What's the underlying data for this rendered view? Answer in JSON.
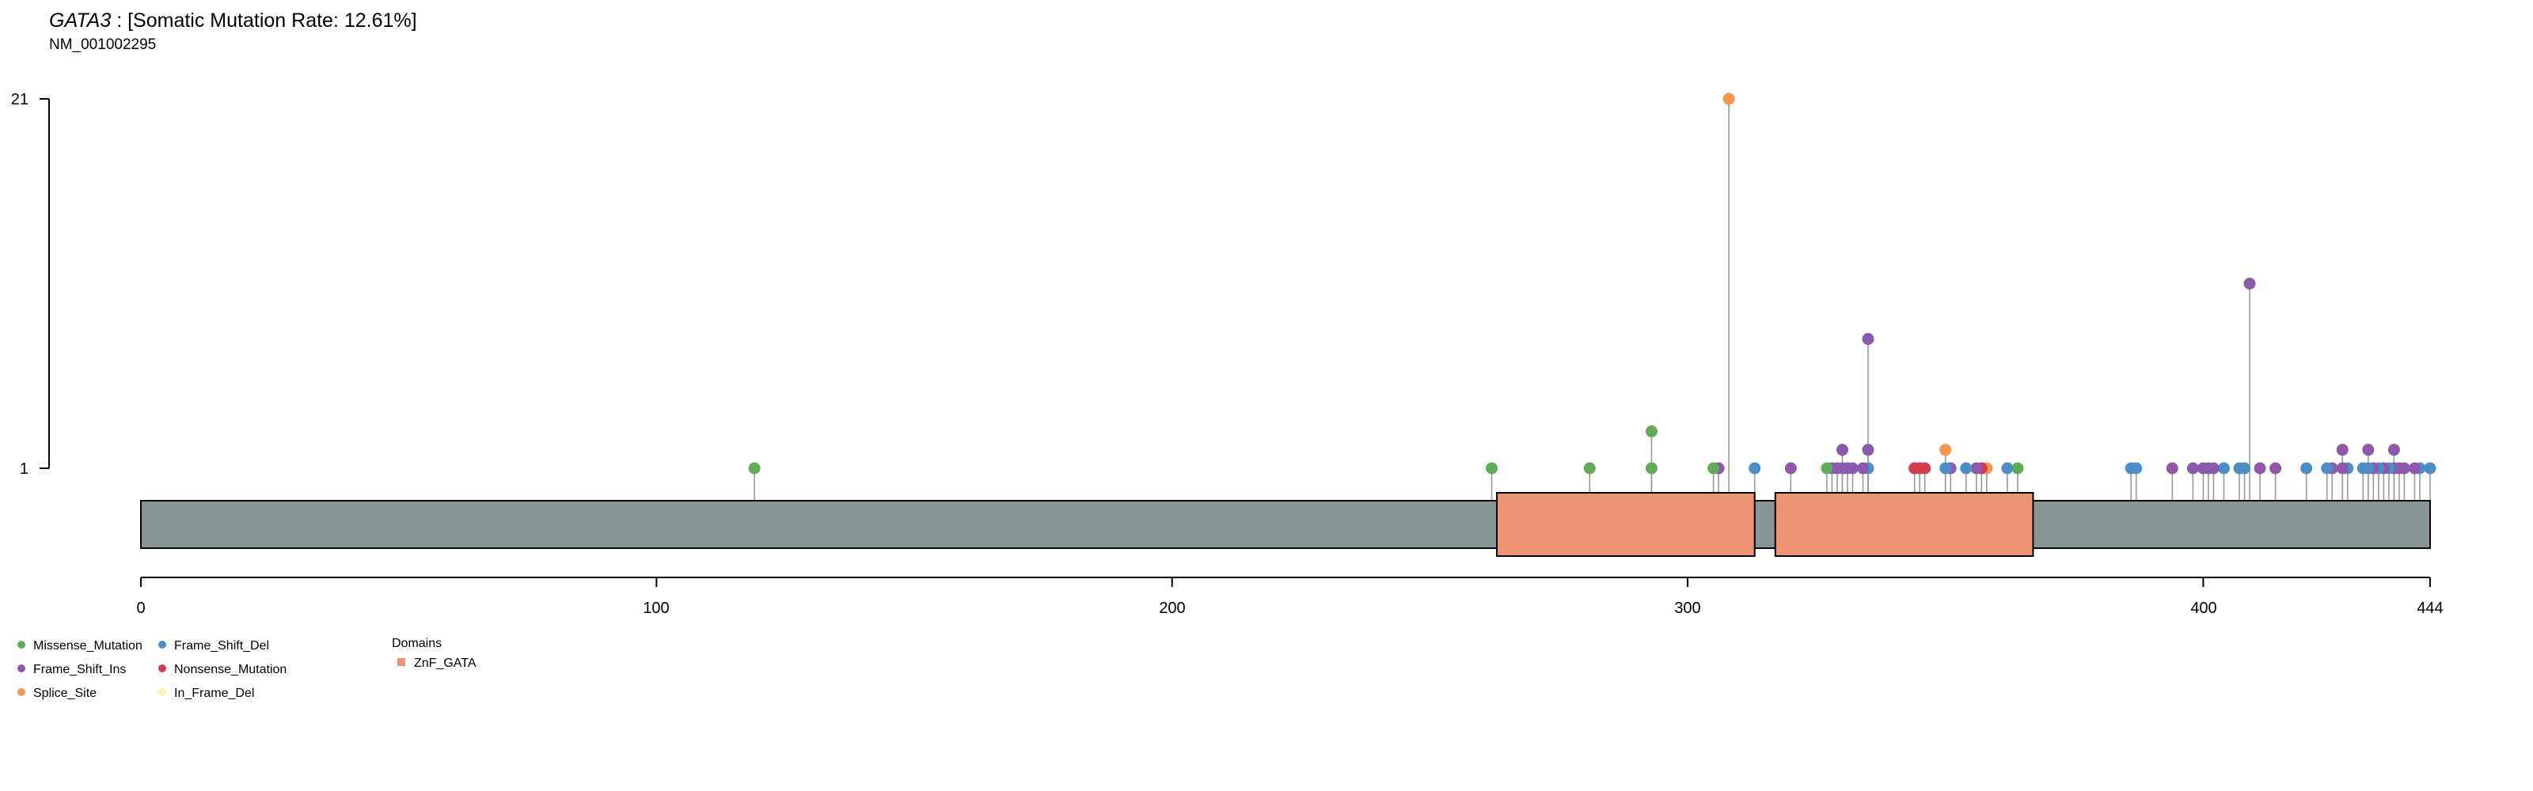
{
  "header": {
    "gene": "GATA3",
    "rate_text": " : [Somatic Mutation Rate: 12.61%]",
    "transcript": "NM_001002295"
  },
  "colors": {
    "Missense_Mutation": "#5fae57",
    "Frame_Shift_Del": "#4a8fc9",
    "Frame_Shift_Ins": "#8b5aad",
    "Nonsense_Mutation": "#d73a4f",
    "Splice_Site": "#f7954b",
    "In_Frame_Del": "#fff5a8",
    "Missense_dark": "#2f7a39",
    "Frame_Shift_Ins_dark": "#5a3387",
    "Frame_Shift_Del_dark": "#1f4e9a",
    "protein": "#879594",
    "domain": "#ef9473",
    "stem": "#9a9a9a"
  },
  "chart_data": {
    "type": "lollipop",
    "protein_length": 444,
    "x_ticks": [
      "0",
      "100",
      "200",
      "300",
      "400",
      "444"
    ],
    "y_ticks": [
      "1",
      "21"
    ],
    "ylim": [
      1,
      21
    ],
    "domains": [
      {
        "name": "ZnF_GATA",
        "start": 263,
        "end": 313
      },
      {
        "name": "ZnF_GATA",
        "start": 317,
        "end": 367
      }
    ],
    "mutations": [
      {
        "pos": 119,
        "count": 1,
        "type": "Missense_Mutation"
      },
      {
        "pos": 262,
        "count": 1,
        "type": "Missense_Mutation"
      },
      {
        "pos": 281,
        "count": 1,
        "type": "Missense_Mutation"
      },
      {
        "pos": 293,
        "count": 1,
        "type": "Missense_Mutation"
      },
      {
        "pos": 293,
        "count": 3,
        "type": "Missense_Mutation"
      },
      {
        "pos": 305,
        "count": 1,
        "type": "Missense_Mutation"
      },
      {
        "pos": 306,
        "count": 1,
        "type": "Frame_Shift_Ins"
      },
      {
        "pos": 308,
        "count": 21,
        "type": "Splice_Site"
      },
      {
        "pos": 313,
        "count": 1,
        "type": "Frame_Shift_Del"
      },
      {
        "pos": 320,
        "count": 1,
        "type": "Frame_Shift_Ins"
      },
      {
        "pos": 327,
        "count": 1,
        "type": "Missense_Mutation"
      },
      {
        "pos": 328,
        "count": 1,
        "type": "Frame_Shift_Ins"
      },
      {
        "pos": 329,
        "count": 1,
        "type": "Frame_Shift_Ins"
      },
      {
        "pos": 330,
        "count": 1,
        "type": "Frame_Shift_Ins"
      },
      {
        "pos": 330,
        "count": 2,
        "type": "Frame_Shift_Ins"
      },
      {
        "pos": 331,
        "count": 1,
        "type": "Frame_Shift_Ins"
      },
      {
        "pos": 332,
        "count": 1,
        "type": "Frame_Shift_Ins"
      },
      {
        "pos": 334,
        "count": 1,
        "type": "Frame_Shift_Ins"
      },
      {
        "pos": 335,
        "count": 1,
        "type": "Frame_Shift_Del"
      },
      {
        "pos": 335,
        "count": 2,
        "type": "Frame_Shift_Ins"
      },
      {
        "pos": 335,
        "count": 8,
        "type": "Frame_Shift_Ins"
      },
      {
        "pos": 344,
        "count": 1,
        "type": "Nonsense_Mutation"
      },
      {
        "pos": 345,
        "count": 1,
        "type": "Nonsense_Mutation"
      },
      {
        "pos": 346,
        "count": 1,
        "type": "Nonsense_Mutation"
      },
      {
        "pos": 350,
        "count": 1,
        "type": "Frame_Shift_Del"
      },
      {
        "pos": 350,
        "count": 2,
        "type": "Splice_Site"
      },
      {
        "pos": 351,
        "count": 1,
        "type": "Frame_Shift_Ins"
      },
      {
        "pos": 354,
        "count": 1,
        "type": "Frame_Shift_Del"
      },
      {
        "pos": 356,
        "count": 1,
        "type": "Frame_Shift_Ins"
      },
      {
        "pos": 357,
        "count": 1,
        "type": "Nonsense_Mutation"
      },
      {
        "pos": 358,
        "count": 1,
        "type": "Splice_Site"
      },
      {
        "pos": 362,
        "count": 1,
        "type": "Frame_Shift_Del"
      },
      {
        "pos": 364,
        "count": 1,
        "type": "Missense_Mutation"
      },
      {
        "pos": 386,
        "count": 1,
        "type": "Frame_Shift_Del"
      },
      {
        "pos": 387,
        "count": 1,
        "type": "Frame_Shift_Del"
      },
      {
        "pos": 394,
        "count": 1,
        "type": "Frame_Shift_Ins"
      },
      {
        "pos": 398,
        "count": 1,
        "type": "Frame_Shift_Ins"
      },
      {
        "pos": 400,
        "count": 1,
        "type": "Frame_Shift_Ins"
      },
      {
        "pos": 401,
        "count": 1,
        "type": "Frame_Shift_Ins"
      },
      {
        "pos": 402,
        "count": 1,
        "type": "Frame_Shift_Ins"
      },
      {
        "pos": 404,
        "count": 1,
        "type": "Frame_Shift_Del"
      },
      {
        "pos": 407,
        "count": 1,
        "type": "Frame_Shift_Del"
      },
      {
        "pos": 408,
        "count": 1,
        "type": "Frame_Shift_Del"
      },
      {
        "pos": 409,
        "count": 11,
        "type": "Frame_Shift_Ins"
      },
      {
        "pos": 411,
        "count": 1,
        "type": "Frame_Shift_Ins"
      },
      {
        "pos": 414,
        "count": 1,
        "type": "Frame_Shift_Ins"
      },
      {
        "pos": 420,
        "count": 1,
        "type": "Frame_Shift_Del"
      },
      {
        "pos": 424,
        "count": 1,
        "type": "Frame_Shift_Del"
      },
      {
        "pos": 425,
        "count": 1,
        "type": "Frame_Shift_Ins"
      },
      {
        "pos": 427,
        "count": 1,
        "type": "Frame_Shift_Ins"
      },
      {
        "pos": 427,
        "count": 2,
        "type": "Frame_Shift_Ins"
      },
      {
        "pos": 428,
        "count": 1,
        "type": "Frame_Shift_Del"
      },
      {
        "pos": 431,
        "count": 1,
        "type": "Frame_Shift_Del"
      },
      {
        "pos": 432,
        "count": 1,
        "type": "Frame_Shift_Del"
      },
      {
        "pos": 432,
        "count": 2,
        "type": "Frame_Shift_Ins"
      },
      {
        "pos": 433,
        "count": 1,
        "type": "Frame_Shift_Ins"
      },
      {
        "pos": 434,
        "count": 1,
        "type": "Frame_Shift_Del"
      },
      {
        "pos": 435,
        "count": 1,
        "type": "Frame_Shift_Ins"
      },
      {
        "pos": 436,
        "count": 1,
        "type": "Frame_Shift_Del"
      },
      {
        "pos": 437,
        "count": 2,
        "type": "Frame_Shift_Ins"
      },
      {
        "pos": 437,
        "count": 1,
        "type": "Frame_Shift_Ins"
      },
      {
        "pos": 438,
        "count": 1,
        "type": "Frame_Shift_Ins"
      },
      {
        "pos": 439,
        "count": 1,
        "type": "Frame_Shift_Ins"
      },
      {
        "pos": 441,
        "count": 1,
        "type": "Frame_Shift_Ins"
      },
      {
        "pos": 442,
        "count": 1,
        "type": "Frame_Shift_Del"
      },
      {
        "pos": 444,
        "count": 1,
        "type": "Frame_Shift_Del"
      }
    ]
  },
  "legend": {
    "items": [
      {
        "label": "Missense_Mutation",
        "color_key": "Missense_Mutation"
      },
      {
        "label": "Frame_Shift_Ins",
        "color_key": "Frame_Shift_Ins"
      },
      {
        "label": "Splice_Site",
        "color_key": "Splice_Site"
      },
      {
        "label": "Frame_Shift_Del",
        "color_key": "Frame_Shift_Del"
      },
      {
        "label": "Nonsense_Mutation",
        "color_key": "Nonsense_Mutation"
      },
      {
        "label": "In_Frame_Del",
        "color_key": "In_Frame_Del"
      }
    ],
    "domains_title": "Domains",
    "domain_items": [
      {
        "label": "ZnF_GATA",
        "color_key": "domain"
      }
    ]
  }
}
